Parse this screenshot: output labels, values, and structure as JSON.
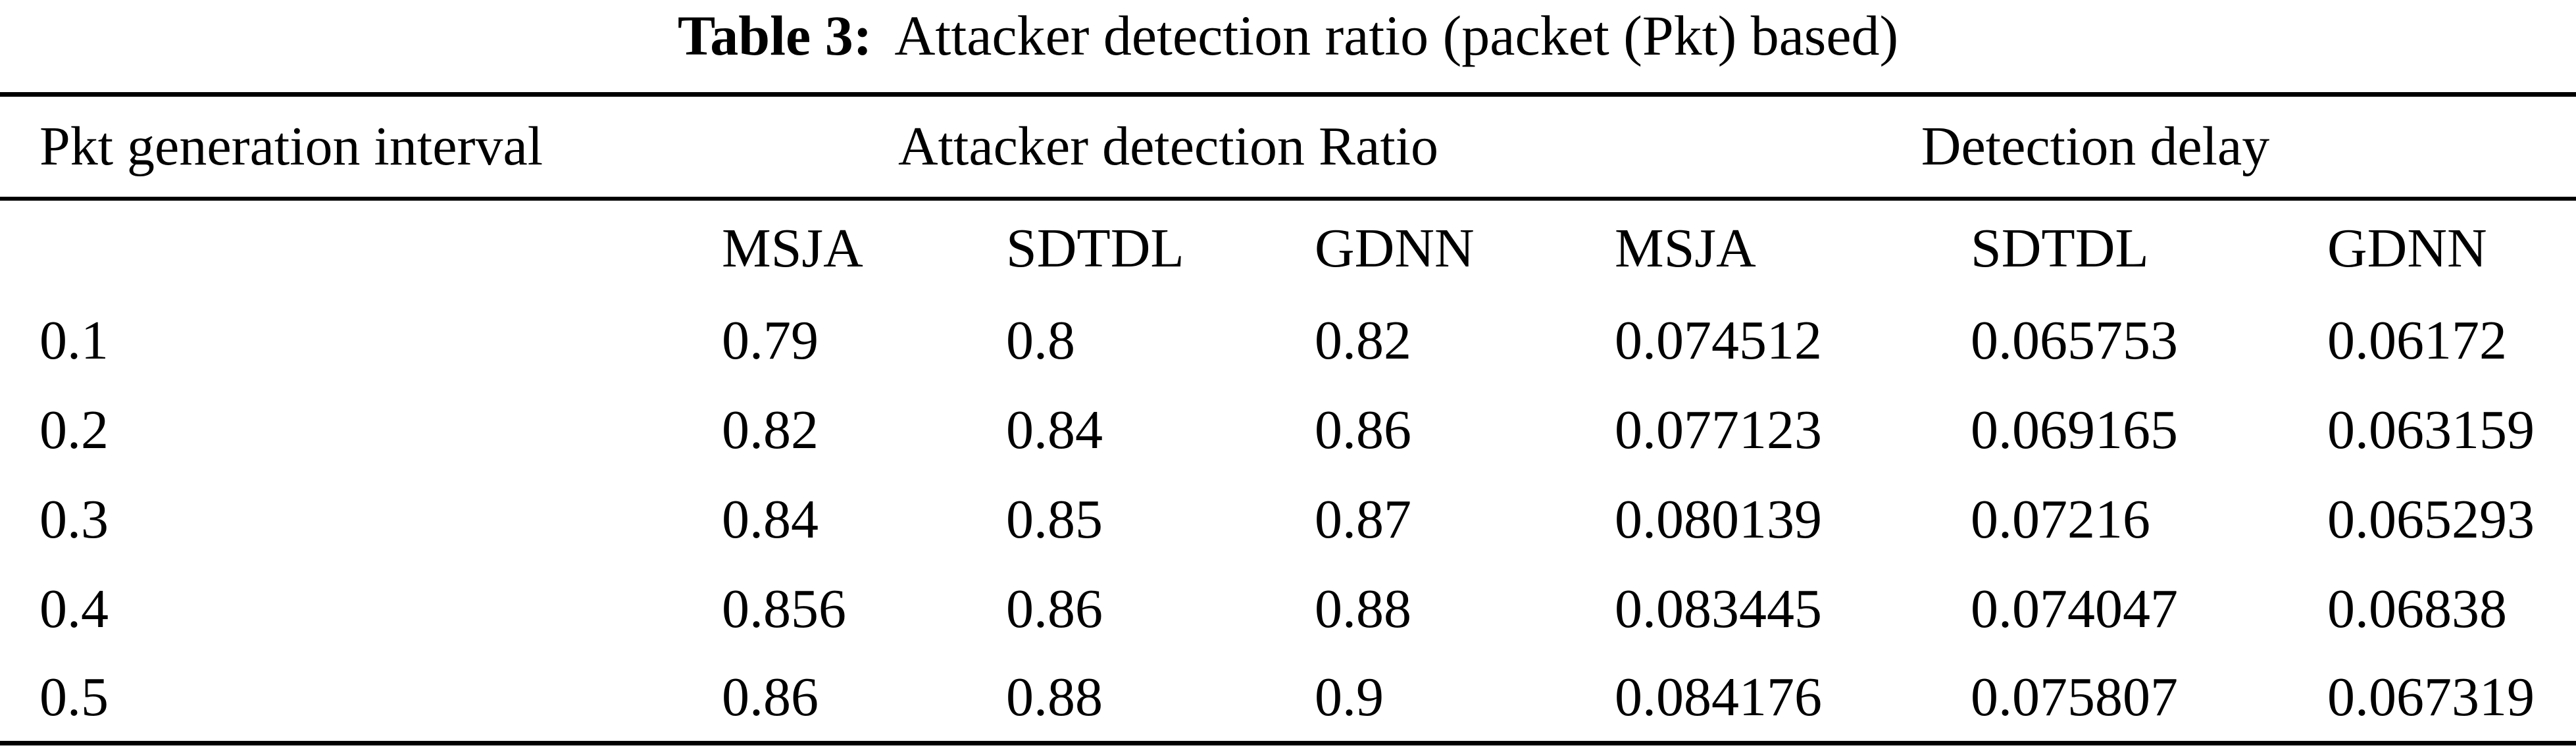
{
  "caption": {
    "label": "Table 3:",
    "text": "Attacker detection ratio (packet (Pkt) based)"
  },
  "table": {
    "row_header": "Pkt generation interval",
    "group_headers": [
      "Attacker detection Ratio",
      "Detection delay"
    ],
    "method_headers": [
      "MSJA",
      "SDTDL",
      "GDNN",
      "MSJA",
      "SDTDL",
      "GDNN"
    ],
    "rows": [
      {
        "interval": "0.1",
        "values": [
          "0.79",
          "0.8",
          "0.82",
          "0.074512",
          "0.065753",
          "0.06172"
        ]
      },
      {
        "interval": "0.2",
        "values": [
          "0.82",
          "0.84",
          "0.86",
          "0.077123",
          "0.069165",
          "0.063159"
        ]
      },
      {
        "interval": "0.3",
        "values": [
          "0.84",
          "0.85",
          "0.87",
          "0.080139",
          "0.07216",
          "0.065293"
        ]
      },
      {
        "interval": "0.4",
        "values": [
          "0.856",
          "0.86",
          "0.88",
          "0.083445",
          "0.074047",
          "0.06838"
        ]
      },
      {
        "interval": "0.5",
        "values": [
          "0.86",
          "0.88",
          "0.9",
          "0.084176",
          "0.075807",
          "0.067319"
        ]
      }
    ]
  },
  "colors": {
    "text": "#000000",
    "background": "#ffffff",
    "rule": "#000000"
  }
}
